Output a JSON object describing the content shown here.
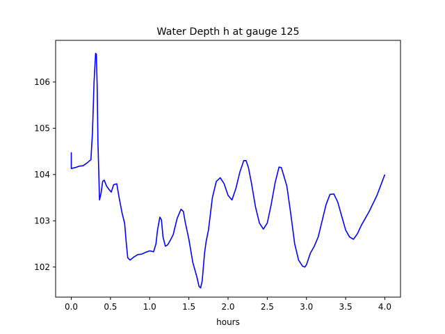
{
  "chart_data": {
    "type": "line",
    "title": "Water Depth h at gauge 125",
    "xlabel": "hours",
    "ylabel": "",
    "xlim": [
      -0.2,
      4.2
    ],
    "ylim": [
      101.35,
      106.9
    ],
    "grid": false,
    "x_ticks": [
      0.0,
      0.5,
      1.0,
      1.5,
      2.0,
      2.5,
      3.0,
      3.5,
      4.0
    ],
    "x_tick_labels": [
      "0.0",
      "0.5",
      "1.0",
      "1.5",
      "2.0",
      "2.5",
      "3.0",
      "3.5",
      "4.0"
    ],
    "y_ticks": [
      102,
      103,
      104,
      105,
      106
    ],
    "y_tick_labels": [
      "102",
      "103",
      "104",
      "105",
      "106"
    ],
    "series": [
      {
        "color": "#0000ff",
        "x": [
          0.0,
          0.0,
          0.05,
          0.1,
          0.15,
          0.2,
          0.25,
          0.27,
          0.29,
          0.31,
          0.32,
          0.33,
          0.34,
          0.36,
          0.38,
          0.4,
          0.42,
          0.45,
          0.48,
          0.51,
          0.54,
          0.58,
          0.61,
          0.65,
          0.68,
          0.7,
          0.72,
          0.75,
          0.8,
          0.85,
          0.9,
          0.95,
          1.0,
          1.05,
          1.08,
          1.1,
          1.13,
          1.15,
          1.17,
          1.2,
          1.23,
          1.27,
          1.3,
          1.35,
          1.4,
          1.43,
          1.45,
          1.5,
          1.55,
          1.6,
          1.63,
          1.65,
          1.67,
          1.7,
          1.72,
          1.75,
          1.8,
          1.85,
          1.9,
          1.95,
          2.0,
          2.05,
          2.1,
          2.15,
          2.2,
          2.23,
          2.26,
          2.3,
          2.35,
          2.4,
          2.45,
          2.5,
          2.55,
          2.6,
          2.65,
          2.68,
          2.71,
          2.75,
          2.8,
          2.85,
          2.9,
          2.95,
          2.98,
          3.0,
          3.05,
          3.1,
          3.15,
          3.2,
          3.25,
          3.3,
          3.35,
          3.4,
          3.45,
          3.5,
          3.55,
          3.6,
          3.65,
          3.7,
          3.8,
          3.9,
          4.0
        ],
        "y": [
          104.48,
          104.13,
          104.15,
          104.18,
          104.19,
          104.25,
          104.32,
          104.9,
          106.0,
          106.62,
          106.6,
          105.9,
          104.7,
          103.45,
          103.6,
          103.85,
          103.88,
          103.75,
          103.68,
          103.62,
          103.78,
          103.8,
          103.5,
          103.15,
          102.95,
          102.55,
          102.2,
          102.15,
          102.22,
          102.27,
          102.28,
          102.32,
          102.35,
          102.33,
          102.5,
          102.8,
          103.08,
          103.02,
          102.65,
          102.45,
          102.48,
          102.6,
          102.7,
          103.05,
          103.25,
          103.2,
          103.0,
          102.6,
          102.1,
          101.8,
          101.58,
          101.55,
          101.7,
          102.3,
          102.55,
          102.8,
          103.5,
          103.85,
          103.93,
          103.8,
          103.55,
          103.45,
          103.7,
          104.05,
          104.3,
          104.3,
          104.15,
          103.8,
          103.3,
          102.95,
          102.82,
          102.95,
          103.35,
          103.82,
          104.16,
          104.15,
          103.98,
          103.75,
          103.15,
          102.5,
          102.15,
          102.02,
          102.0,
          102.05,
          102.3,
          102.45,
          102.65,
          103.0,
          103.35,
          103.57,
          103.58,
          103.4,
          103.1,
          102.8,
          102.65,
          102.6,
          102.72,
          102.9,
          103.2,
          103.55,
          104.0
        ]
      }
    ]
  }
}
